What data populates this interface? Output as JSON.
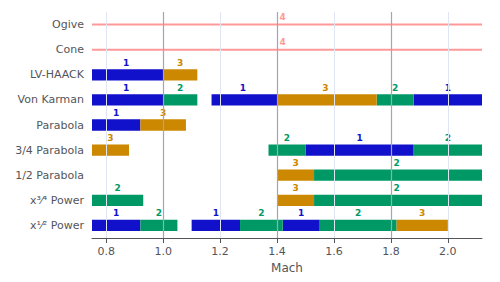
{
  "chart_data": {
    "type": "range",
    "orientation": "horizontal",
    "xlabel": "Mach",
    "categories": [
      "Ogive",
      "Cone",
      "LV-HAACK",
      "Von Karman",
      "Parabola",
      "3/4 Parabola",
      "1/2 Parabola",
      "x³⁄⁴ Power",
      "x¹⁄² Power"
    ],
    "xlim": [
      0.75,
      2.12
    ],
    "xticks": [
      0.8,
      {
        "value": 1.0,
        "label": "1.0"
      },
      1.2,
      1.4,
      1.6,
      1.8,
      {
        "value": 2.0,
        "label": "2.0"
      }
    ],
    "grid": true,
    "vlines": [
      1.0,
      1.4,
      1.8
    ],
    "series": [
      {
        "name": "1",
        "color": "#1111cc",
        "type": "bar",
        "segments": [
          {
            "category": "LV-HAACK",
            "start": 0.75,
            "end": 1.0
          },
          {
            "category": "Von Karman",
            "start": 0.75,
            "end": 1.0
          },
          {
            "category": "Von Karman",
            "start": 1.17,
            "end": 1.4
          },
          {
            "category": "Von Karman",
            "start": 1.88,
            "end": 2.12
          },
          {
            "category": "Parabola",
            "start": 0.75,
            "end": 0.92
          },
          {
            "category": "3/4 Parabola",
            "start": 1.5,
            "end": 1.88
          },
          {
            "category": "x¹⁄² Power",
            "start": 0.75,
            "end": 0.92
          },
          {
            "category": "x¹⁄² Power",
            "start": 1.1,
            "end": 1.27
          },
          {
            "category": "x¹⁄² Power",
            "start": 1.42,
            "end": 1.55
          }
        ],
        "labels": [
          {
            "category": "LV-HAACK",
            "x": 0.87
          },
          {
            "category": "Von Karman",
            "x": 0.87
          },
          {
            "category": "Von Karman",
            "x": 1.28
          },
          {
            "category": "Von Karman",
            "x": 2.0
          },
          {
            "category": "Parabola",
            "x": 0.835
          },
          {
            "category": "3/4 Parabola",
            "x": 1.69
          },
          {
            "category": "x¹⁄² Power",
            "x": 0.835
          },
          {
            "category": "x¹⁄² Power",
            "x": 1.185
          },
          {
            "category": "x¹⁄² Power",
            "x": 1.485
          }
        ]
      },
      {
        "name": "2",
        "color": "#009966",
        "type": "bar",
        "segments": [
          {
            "category": "Von Karman",
            "start": 1.0,
            "end": 1.12
          },
          {
            "category": "Von Karman",
            "start": 1.75,
            "end": 1.88
          },
          {
            "category": "3/4 Parabola",
            "start": 1.37,
            "end": 1.5
          },
          {
            "category": "3/4 Parabola",
            "start": 1.88,
            "end": 2.12
          },
          {
            "category": "1/2 Parabola",
            "start": 1.53,
            "end": 2.12
          },
          {
            "category": "x³⁄⁴ Power",
            "start": 0.75,
            "end": 0.93
          },
          {
            "category": "x³⁄⁴ Power",
            "start": 1.53,
            "end": 2.12
          },
          {
            "category": "x¹⁄² Power",
            "start": 0.92,
            "end": 1.05
          },
          {
            "category": "x¹⁄² Power",
            "start": 1.27,
            "end": 1.42
          },
          {
            "category": "x¹⁄² Power",
            "start": 1.55,
            "end": 1.82
          }
        ],
        "labels": [
          {
            "category": "Von Karman",
            "x": 1.06
          },
          {
            "category": "Von Karman",
            "x": 1.815
          },
          {
            "category": "3/4 Parabola",
            "x": 1.435
          },
          {
            "category": "3/4 Parabola",
            "x": 2.0
          },
          {
            "category": "1/2 Parabola",
            "x": 1.82
          },
          {
            "category": "x³⁄⁴ Power",
            "x": 0.84
          },
          {
            "category": "x³⁄⁴ Power",
            "x": 1.82
          },
          {
            "category": "x¹⁄² Power",
            "x": 0.985
          },
          {
            "category": "x¹⁄² Power",
            "x": 1.345
          },
          {
            "category": "x¹⁄² Power",
            "x": 1.685
          }
        ]
      },
      {
        "name": "3",
        "color": "#cc8800",
        "type": "bar",
        "segments": [
          {
            "category": "LV-HAACK",
            "start": 1.0,
            "end": 1.12
          },
          {
            "category": "Von Karman",
            "start": 1.4,
            "end": 1.75
          },
          {
            "category": "Parabola",
            "start": 0.92,
            "end": 1.08
          },
          {
            "category": "3/4 Parabola",
            "start": 0.75,
            "end": 0.88
          },
          {
            "category": "1/2 Parabola",
            "start": 1.4,
            "end": 1.53
          },
          {
            "category": "x³⁄⁴ Power",
            "start": 1.4,
            "end": 1.53
          },
          {
            "category": "x¹⁄² Power",
            "start": 1.82,
            "end": 2.0
          }
        ],
        "labels": [
          {
            "category": "LV-HAACK",
            "x": 1.06
          },
          {
            "category": "Von Karman",
            "x": 1.57
          },
          {
            "category": "Parabola",
            "x": 1.0
          },
          {
            "category": "3/4 Parabola",
            "x": 0.815
          },
          {
            "category": "1/2 Parabola",
            "x": 1.465
          },
          {
            "category": "x³⁄⁴ Power",
            "x": 1.465
          },
          {
            "category": "x¹⁄² Power",
            "x": 1.91
          }
        ]
      },
      {
        "name": "4",
        "color": "#ff9999",
        "type": "line",
        "segments": [
          {
            "category": "Ogive",
            "start": 0.75,
            "end": 2.12
          },
          {
            "category": "Cone",
            "start": 0.75,
            "end": 2.12
          }
        ],
        "labels": [
          {
            "category": "Ogive",
            "x": 1.42
          },
          {
            "category": "Cone",
            "x": 1.42
          }
        ]
      }
    ]
  }
}
